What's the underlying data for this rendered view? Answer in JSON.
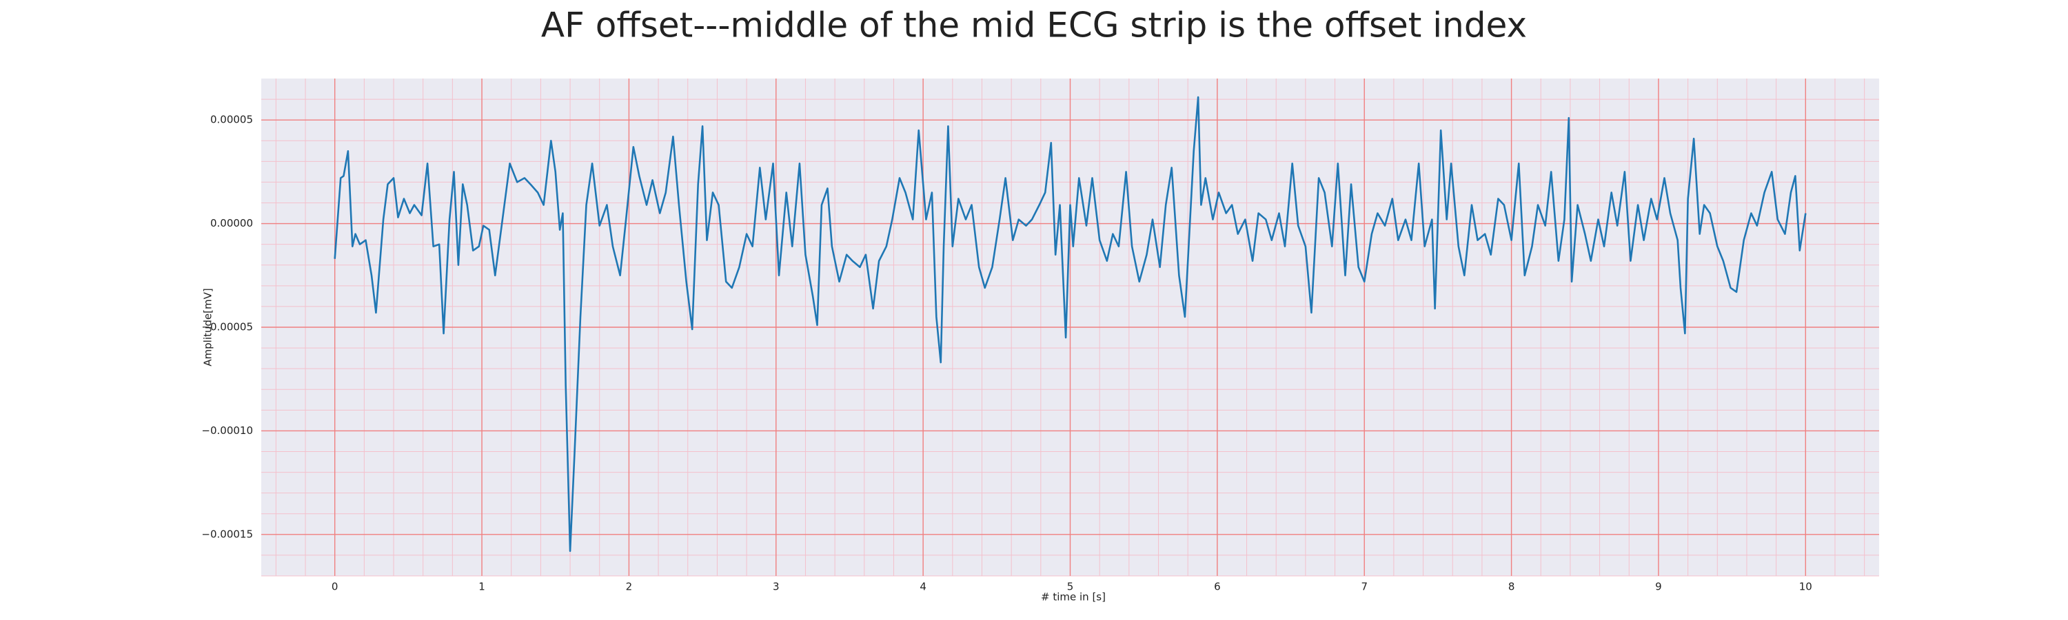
{
  "chart_data": {
    "type": "line",
    "title": "AF offset---middle of the mid ECG strip is the offset index",
    "xlabel": "# time in [s]",
    "ylabel": "Amplitude[mV]",
    "xlim": [
      -0.5,
      10.5
    ],
    "ylim": [
      -0.00017,
      7e-05
    ],
    "xticks": [
      0,
      1,
      2,
      3,
      4,
      5,
      6,
      7,
      8,
      9,
      10
    ],
    "yticks": [
      {
        "value": -0.00015,
        "label": "−0.00015"
      },
      {
        "value": -0.0001,
        "label": "−0.00010"
      },
      {
        "value": -5e-05,
        "label": "−0.00005"
      },
      {
        "value": 0,
        "label": "0.00000"
      },
      {
        "value": 5e-05,
        "label": "0.00005"
      }
    ],
    "grid": true,
    "grid_color": "#f08080",
    "minor_grid": {
      "x": 0.2,
      "y": 1e-05,
      "color": "#f4c0cc"
    },
    "background": "#eaeaf2",
    "color": "#1f77b4",
    "x": [
      0,
      0.04,
      0.06,
      0.09,
      0.12,
      0.14,
      0.17,
      0.21,
      0.25,
      0.28,
      0.33,
      0.36,
      0.4,
      0.43,
      0.47,
      0.51,
      0.54,
      0.59,
      0.63,
      0.67,
      0.71,
      0.74,
      0.78,
      0.81,
      0.84,
      0.87,
      0.9,
      0.94,
      0.98,
      1.01,
      1.05,
      1.09,
      1.14,
      1.19,
      1.24,
      1.29,
      1.33,
      1.38,
      1.42,
      1.47,
      1.5,
      1.53,
      1.55,
      1.57,
      1.6,
      1.63,
      1.67,
      1.71,
      1.75,
      1.8,
      1.85,
      1.89,
      1.94,
      1.98,
      2.03,
      2.07,
      2.12,
      2.16,
      2.21,
      2.25,
      2.3,
      2.34,
      2.39,
      2.43,
      2.47,
      2.5,
      2.53,
      2.57,
      2.61,
      2.66,
      2.7,
      2.75,
      2.8,
      2.84,
      2.89,
      2.93,
      2.98,
      3.02,
      3.07,
      3.11,
      3.16,
      3.2,
      3.25,
      3.28,
      3.31,
      3.35,
      3.38,
      3.43,
      3.48,
      3.52,
      3.57,
      3.61,
      3.66,
      3.7,
      3.75,
      3.79,
      3.84,
      3.88,
      3.93,
      3.97,
      4.02,
      4.06,
      4.09,
      4.12,
      4.14,
      4.17,
      4.2,
      4.24,
      4.29,
      4.33,
      4.38,
      4.42,
      4.47,
      4.52,
      4.56,
      4.61,
      4.65,
      4.7,
      4.74,
      4.79,
      4.83,
      4.87,
      4.9,
      4.93,
      4.97,
      5.0,
      5.02,
      5.06,
      5.11,
      5.15,
      5.2,
      5.25,
      5.29,
      5.33,
      5.38,
      5.42,
      5.47,
      5.52,
      5.56,
      5.61,
      5.65,
      5.69,
      5.74,
      5.78,
      5.81,
      5.84,
      5.87,
      5.89,
      5.92,
      5.97,
      6.01,
      6.06,
      6.1,
      6.14,
      6.19,
      6.24,
      6.28,
      6.33,
      6.37,
      6.42,
      6.46,
      6.51,
      6.55,
      6.6,
      6.64,
      6.69,
      6.73,
      6.78,
      6.82,
      6.87,
      6.91,
      6.96,
      7.0,
      7.05,
      7.09,
      7.14,
      7.19,
      7.23,
      7.28,
      7.32,
      7.37,
      7.41,
      7.46,
      7.48,
      7.52,
      7.56,
      7.59,
      7.64,
      7.68,
      7.73,
      7.77,
      7.82,
      7.86,
      7.91,
      7.95,
      8.0,
      8.05,
      8.09,
      8.14,
      8.18,
      8.23,
      8.27,
      8.32,
      8.36,
      8.39,
      8.41,
      8.45,
      8.5,
      8.54,
      8.59,
      8.63,
      8.68,
      8.72,
      8.77,
      8.81,
      8.86,
      8.9,
      8.95,
      8.99,
      9.04,
      9.08,
      9.13,
      9.15,
      9.18,
      9.2,
      9.24,
      9.28,
      9.31,
      9.35,
      9.4,
      9.44,
      9.49,
      9.53,
      9.58,
      9.63,
      9.67,
      9.72,
      9.77,
      9.81,
      9.86,
      9.9,
      9.93,
      9.96,
      10.0
    ],
    "values": [
      -1.7e-05,
      2.2e-05,
      2.3e-05,
      3.5e-05,
      -1.1e-05,
      -5e-06,
      -1e-05,
      -8e-06,
      -2.5e-05,
      -4.3e-05,
      2e-06,
      1.9e-05,
      2.2e-05,
      3e-06,
      1.2e-05,
      5e-06,
      9e-06,
      4e-06,
      2.9e-05,
      -1.1e-05,
      -1e-05,
      -5.3e-05,
      2e-06,
      2.5e-05,
      -2e-05,
      1.9e-05,
      9e-06,
      -1.3e-05,
      -1.1e-05,
      -1e-06,
      -3e-06,
      -2.5e-05,
      2e-06,
      2.9e-05,
      2e-05,
      2.2e-05,
      1.9e-05,
      1.5e-05,
      9e-06,
      4e-05,
      2.5e-05,
      -3e-06,
      5e-06,
      -7.8e-05,
      -0.000158,
      -0.000111,
      -4.5e-05,
      9e-06,
      2.9e-05,
      -1e-06,
      9e-06,
      -1.1e-05,
      -2.5e-05,
      2e-06,
      3.7e-05,
      2.3e-05,
      9e-06,
      2.1e-05,
      5e-06,
      1.5e-05,
      4.2e-05,
      9e-06,
      -2.8e-05,
      -5.1e-05,
      1.9e-05,
      4.7e-05,
      -8e-06,
      1.5e-05,
      9e-06,
      -2.8e-05,
      -3.1e-05,
      -2.1e-05,
      -5e-06,
      -1.1e-05,
      2.7e-05,
      2e-06,
      2.9e-05,
      -2.5e-05,
      1.5e-05,
      -1.1e-05,
      2.9e-05,
      -1.5e-05,
      -3.5e-05,
      -4.9e-05,
      9e-06,
      1.7e-05,
      -1.1e-05,
      -2.8e-05,
      -1.5e-05,
      -1.8e-05,
      -2.1e-05,
      -1.5e-05,
      -4.1e-05,
      -1.8e-05,
      -1.1e-05,
      2e-06,
      2.2e-05,
      1.5e-05,
      2e-06,
      4.5e-05,
      2e-06,
      1.5e-05,
      -4.5e-05,
      -6.7e-05,
      -1.1e-05,
      4.7e-05,
      -1.1e-05,
      1.2e-05,
      2e-06,
      9e-06,
      -2.1e-05,
      -3.1e-05,
      -2.1e-05,
      2e-06,
      2.2e-05,
      -8e-06,
      2e-06,
      -1e-06,
      2e-06,
      9e-06,
      1.5e-05,
      3.9e-05,
      -1.5e-05,
      9e-06,
      -5.5e-05,
      9e-06,
      -1.1e-05,
      2.2e-05,
      -1e-06,
      2.2e-05,
      -8e-06,
      -1.8e-05,
      -5e-06,
      -1.1e-05,
      2.5e-05,
      -1.1e-05,
      -2.8e-05,
      -1.5e-05,
      2e-06,
      -2.1e-05,
      9e-06,
      2.7e-05,
      -2.5e-05,
      -4.5e-05,
      -5e-06,
      3.5e-05,
      6.1e-05,
      9e-06,
      2.2e-05,
      2e-06,
      1.5e-05,
      5e-06,
      9e-06,
      -5e-06,
      2e-06,
      -1.8e-05,
      5e-06,
      2e-06,
      -8e-06,
      5e-06,
      -1.1e-05,
      2.9e-05,
      -1e-06,
      -1.1e-05,
      -4.3e-05,
      2.2e-05,
      1.5e-05,
      -1.1e-05,
      2.9e-05,
      -2.5e-05,
      1.9e-05,
      -2.1e-05,
      -2.8e-05,
      -5e-06,
      5e-06,
      -1e-06,
      1.2e-05,
      -8e-06,
      2e-06,
      -8e-06,
      2.9e-05,
      -1.1e-05,
      2e-06,
      -4.1e-05,
      4.5e-05,
      2e-06,
      2.9e-05,
      -1.1e-05,
      -2.5e-05,
      9e-06,
      -8e-06,
      -5e-06,
      -1.5e-05,
      1.2e-05,
      9e-06,
      -8e-06,
      2.9e-05,
      -2.5e-05,
      -1.1e-05,
      9e-06,
      -1e-06,
      2.5e-05,
      -1.8e-05,
      2e-06,
      5.1e-05,
      -2.8e-05,
      9e-06,
      -5e-06,
      -1.8e-05,
      2e-06,
      -1.1e-05,
      1.5e-05,
      -1e-06,
      2.5e-05,
      -1.8e-05,
      9e-06,
      -8e-06,
      1.2e-05,
      2e-06,
      2.2e-05,
      5e-06,
      -8e-06,
      -3.1e-05,
      -5.3e-05,
      1.2e-05,
      4.1e-05,
      -5e-06,
      9e-06,
      5e-06,
      -1.1e-05,
      -1.8e-05,
      -3.1e-05,
      -3.3e-05,
      -8e-06,
      5e-06,
      -1e-06,
      1.5e-05,
      2.5e-05,
      2e-06,
      -5e-06,
      1.5e-05,
      2.3e-05,
      -1.3e-05,
      5e-06
    ]
  }
}
